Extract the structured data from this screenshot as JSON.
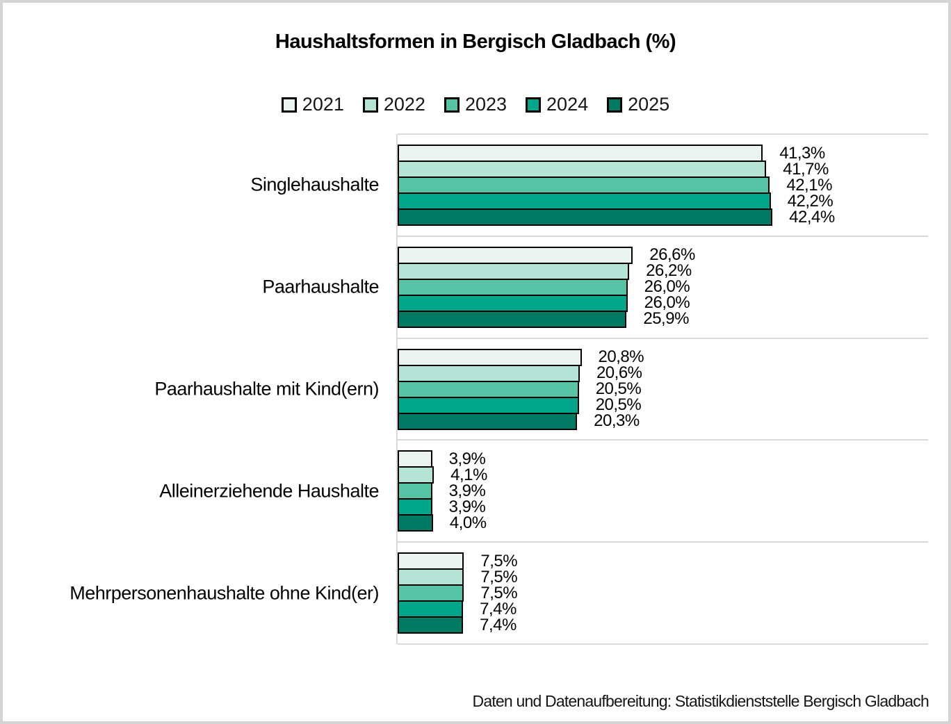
{
  "page": {
    "background": "#ffffff",
    "frame_color": "#d4d4d4"
  },
  "chart_data": {
    "type": "bar",
    "orientation": "horizontal",
    "title": "Haushaltsformen in Bergisch Gladbach (%)",
    "footer": "Daten und Datenaufbereitung: Statistikdienststelle Bergisch Gladbach",
    "categories": [
      "Singlehaushalte",
      "Paarhaushalte",
      "Paarhaushalte mit Kind(ern)",
      "Alleinerziehende Haushalte",
      "Mehrpersonenhaushalte ohne Kind(er)"
    ],
    "series": [
      {
        "name": "2021",
        "color": "#ebf3f0",
        "values": [
          41.3,
          26.6,
          20.8,
          3.9,
          7.5
        ],
        "labels": [
          "41,3%",
          "26,6%",
          "20,8%",
          "3,9%",
          "7,5%"
        ]
      },
      {
        "name": "2022",
        "color": "#b5e3d5",
        "values": [
          41.7,
          26.2,
          20.6,
          4.1,
          7.5
        ],
        "labels": [
          "41,7%",
          "26,2%",
          "20,6%",
          "4,1%",
          "7,5%"
        ]
      },
      {
        "name": "2023",
        "color": "#56c3a4",
        "values": [
          42.1,
          26.0,
          20.5,
          3.9,
          7.5
        ],
        "labels": [
          "42,1%",
          "26,0%",
          "20,5%",
          "3,9%",
          "7,5%"
        ]
      },
      {
        "name": "2024",
        "color": "#00a689",
        "values": [
          42.2,
          26.0,
          20.5,
          3.9,
          7.4
        ],
        "labels": [
          "42,2%",
          "26,0%",
          "20,5%",
          "3,9%",
          "7,4%"
        ]
      },
      {
        "name": "2025",
        "color": "#007a62",
        "values": [
          42.4,
          25.9,
          20.3,
          4.0,
          7.4
        ],
        "labels": [
          "42,4%",
          "25,9%",
          "20,3%",
          "4,0%",
          "7,4%"
        ]
      }
    ],
    "xlim": [
      0,
      60
    ],
    "value_suffix": "%",
    "decimal_separator": ",",
    "legend_position": "top-center",
    "grid": true,
    "gridline_color": "#d9d9d9",
    "bar_outline_color": "#000000"
  }
}
